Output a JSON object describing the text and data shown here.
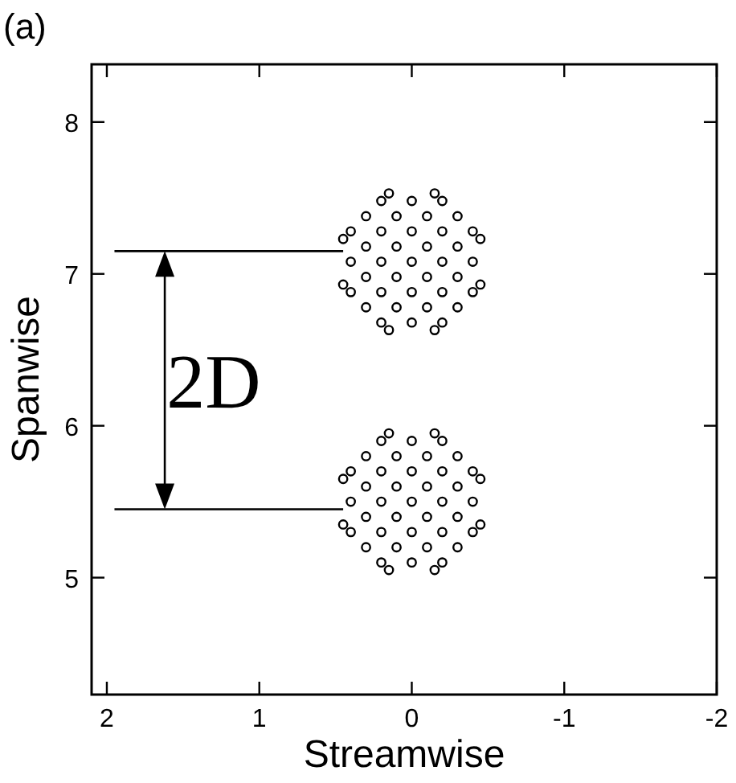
{
  "chart_data": {
    "type": "scatter",
    "xlabel": "Streamwise",
    "ylabel": "Spanwise",
    "xlim": [
      2.1,
      -2
    ],
    "xticks": [
      2,
      1,
      0,
      -1,
      -2
    ],
    "ylim": [
      4.23,
      8.38
    ],
    "yticks": [
      5,
      6,
      7,
      8
    ],
    "tick_labels": "xy",
    "annotations": [
      "(a)",
      "2D"
    ],
    "series": [
      {
        "type": "line",
        "color": "#000000",
        "x": [
          1.95,
          0.45
        ],
        "values": [
          7.15,
          7.15
        ]
      },
      {
        "type": "line",
        "color": "#000000",
        "x": [
          1.95,
          0.45
        ],
        "values": [
          5.45,
          5.45
        ]
      },
      {
        "marker": "circle",
        "color": "#000000",
        "x": [
          0,
          0.2,
          -0.2,
          0.4,
          -0.4,
          0,
          0,
          0,
          0,
          0.2,
          -0.2,
          0.2,
          -0.2,
          0.3,
          -0.3,
          0.3,
          -0.3,
          0.1,
          -0.1,
          0.1,
          -0.1,
          0.1,
          -0.1,
          0.1,
          -0.1,
          0.3,
          -0.3,
          0.3,
          -0.3,
          0.45,
          -0.45,
          0.45,
          -0.45,
          0.15,
          -0.15,
          0.15,
          -0.15,
          0.4,
          -0.4,
          0.4,
          -0.4,
          0.2,
          -0.2,
          0.2,
          -0.2
        ],
        "values": [
          7.08,
          7.08,
          7.08,
          7.08,
          7.08,
          7.28,
          6.88,
          7.48,
          6.68,
          7.28,
          7.28,
          6.88,
          6.88,
          7.38,
          7.38,
          6.78,
          6.78,
          7.18,
          7.18,
          6.98,
          6.98,
          7.38,
          7.38,
          6.78,
          6.78,
          7.18,
          7.18,
          6.98,
          6.98,
          7.23,
          7.23,
          6.93,
          6.93,
          7.53,
          7.53,
          6.63,
          6.63,
          7.28,
          7.28,
          6.88,
          6.88,
          7.48,
          7.48,
          6.68,
          6.68
        ]
      },
      {
        "marker": "circle",
        "color": "#000000",
        "x": [
          0,
          0.2,
          -0.2,
          0.4,
          -0.4,
          0,
          0,
          0,
          0,
          0.2,
          -0.2,
          0.2,
          -0.2,
          0.3,
          -0.3,
          0.3,
          -0.3,
          0.1,
          -0.1,
          0.1,
          -0.1,
          0.1,
          -0.1,
          0.1,
          -0.1,
          0.3,
          -0.3,
          0.3,
          -0.3,
          0.45,
          -0.45,
          0.45,
          -0.45,
          0.15,
          -0.15,
          0.15,
          -0.15,
          0.4,
          -0.4,
          0.4,
          -0.4,
          0.2,
          -0.2,
          0.2,
          -0.2
        ],
        "values": [
          5.5,
          5.5,
          5.5,
          5.5,
          5.5,
          5.7,
          5.3,
          5.9,
          5.1,
          5.7,
          5.7,
          5.3,
          5.3,
          5.8,
          5.8,
          5.2,
          5.2,
          5.6,
          5.6,
          5.4,
          5.4,
          5.8,
          5.8,
          5.2,
          5.2,
          5.6,
          5.6,
          5.4,
          5.4,
          5.65,
          5.65,
          5.35,
          5.35,
          5.95,
          5.95,
          5.05,
          5.05,
          5.7,
          5.7,
          5.3,
          5.3,
          5.9,
          5.9,
          5.1,
          5.1
        ]
      }
    ]
  }
}
